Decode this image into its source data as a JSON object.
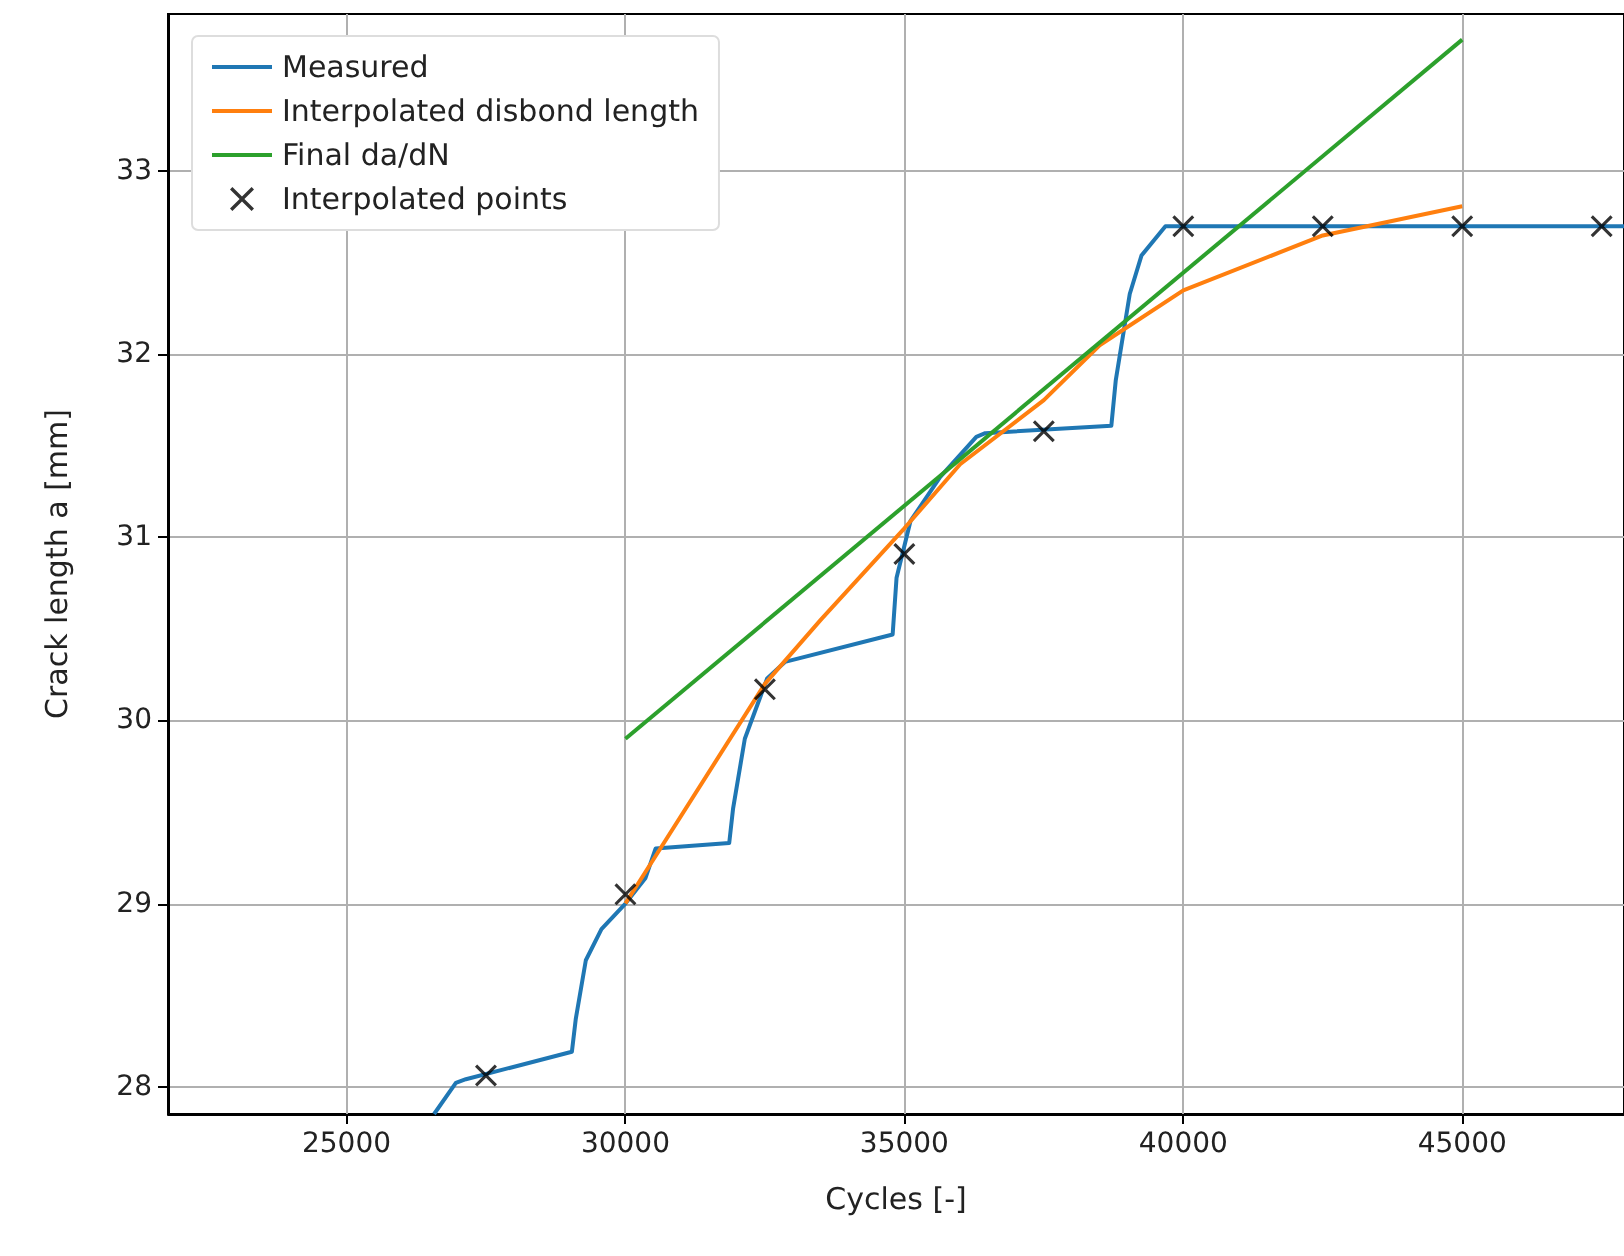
{
  "chart_data": {
    "type": "line",
    "xlabel": "Cycles [-]",
    "ylabel": "Crack length a [mm]",
    "xlim": [
      21800,
      47900
    ],
    "ylim": [
      27.85,
      33.86
    ],
    "xticks": [
      25000,
      30000,
      35000,
      40000,
      45000
    ],
    "yticks": [
      28,
      29,
      30,
      31,
      32,
      33
    ],
    "grid": true,
    "legend": "top left",
    "series": [
      {
        "name": "Measured",
        "color": "#1f77b4",
        "x": [
          26570,
          26960,
          27140,
          29040,
          29110,
          29290,
          29570,
          30000,
          30360,
          30540,
          31860,
          31930,
          32140,
          32540,
          32860,
          34790,
          34860,
          35110,
          35640,
          36290,
          36450,
          38710,
          38790,
          39040,
          39250,
          39680,
          47900
        ],
        "values": [
          27.85,
          28.02,
          28.04,
          28.19,
          28.37,
          28.69,
          28.86,
          29.0,
          29.14,
          29.3,
          29.33,
          29.52,
          29.9,
          30.23,
          30.32,
          30.47,
          30.78,
          31.09,
          31.33,
          31.55,
          31.57,
          31.61,
          31.86,
          32.33,
          32.54,
          32.7,
          32.7
        ]
      },
      {
        "name": "Interpolated disbond length",
        "color": "#ff7f0e",
        "x": [
          30000,
          32500,
          33500,
          35000,
          36000,
          37500,
          38500,
          40000,
          42500,
          45000
        ],
        "values": [
          29.0,
          30.2,
          30.55,
          31.05,
          31.4,
          31.75,
          32.05,
          32.35,
          32.65,
          32.81
        ]
      },
      {
        "name": "Final da/dN",
        "color": "#2ca02c",
        "x": [
          30000,
          45000
        ],
        "values": [
          29.9,
          33.72
        ]
      },
      {
        "name": "Interpolated points",
        "type": "scatter",
        "marker": "cross",
        "color": "#000000",
        "x": [
          27500,
          30000,
          32500,
          35000,
          37500,
          40000,
          42500,
          45000,
          47500
        ],
        "values": [
          28.06,
          29.05,
          30.17,
          30.91,
          31.58,
          32.7,
          32.7,
          32.7,
          32.7
        ]
      }
    ]
  }
}
